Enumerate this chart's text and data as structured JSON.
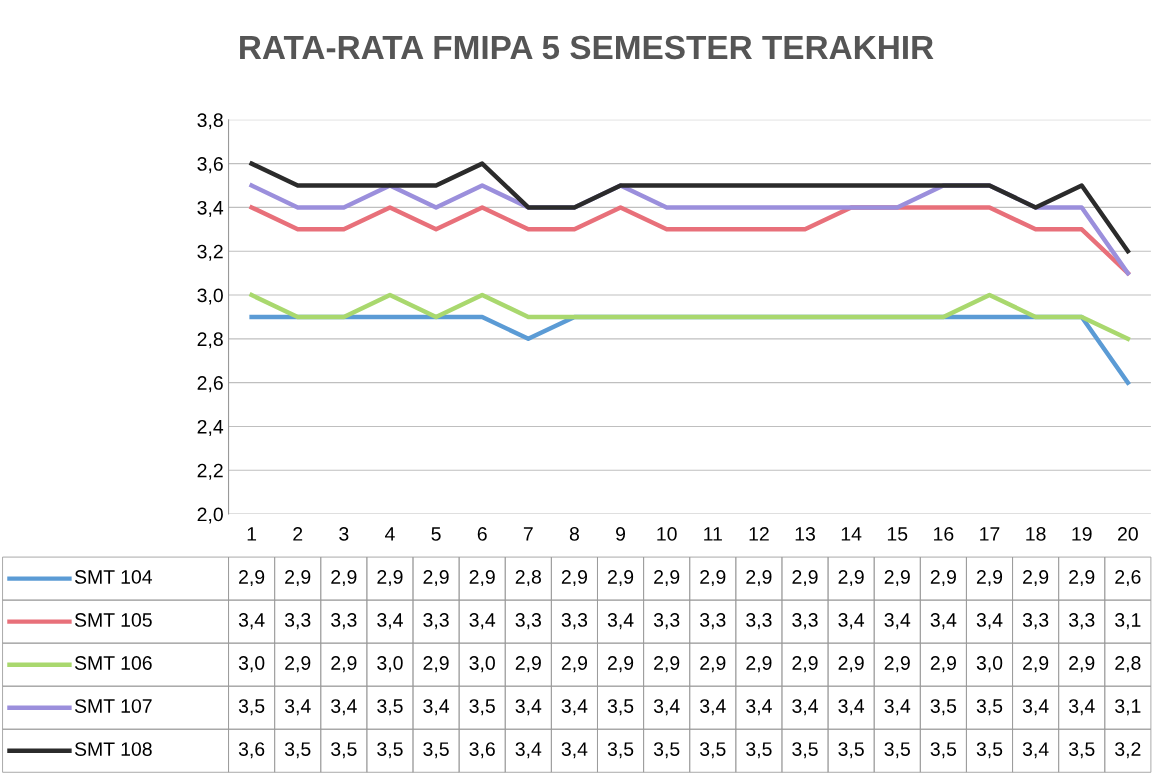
{
  "chart_data": {
    "type": "line",
    "title": "RATA-RATA FMIPA 5 SEMESTER TERAKHIR",
    "categories": [
      "1",
      "2",
      "3",
      "4",
      "5",
      "6",
      "7",
      "8",
      "9",
      "10",
      "11",
      "12",
      "13",
      "14",
      "15",
      "16",
      "17",
      "18",
      "19",
      "20"
    ],
    "series": [
      {
        "name": "SMT 104",
        "color": "#5b9bd5",
        "values": [
          2.9,
          2.9,
          2.9,
          2.9,
          2.9,
          2.9,
          2.8,
          2.9,
          2.9,
          2.9,
          2.9,
          2.9,
          2.9,
          2.9,
          2.9,
          2.9,
          2.9,
          2.9,
          2.9,
          2.6
        ],
        "value_labels": [
          "2,9",
          "2,9",
          "2,9",
          "2,9",
          "2,9",
          "2,9",
          "2,8",
          "2,9",
          "2,9",
          "2,9",
          "2,9",
          "2,9",
          "2,9",
          "2,9",
          "2,9",
          "2,9",
          "2,9",
          "2,9",
          "2,9",
          "2,6"
        ]
      },
      {
        "name": "SMT 105",
        "color": "#e8707a",
        "values": [
          3.4,
          3.3,
          3.3,
          3.4,
          3.3,
          3.4,
          3.3,
          3.3,
          3.4,
          3.3,
          3.3,
          3.3,
          3.3,
          3.4,
          3.4,
          3.4,
          3.4,
          3.3,
          3.3,
          3.1
        ],
        "value_labels": [
          "3,4",
          "3,3",
          "3,3",
          "3,4",
          "3,3",
          "3,4",
          "3,3",
          "3,3",
          "3,4",
          "3,3",
          "3,3",
          "3,3",
          "3,3",
          "3,4",
          "3,4",
          "3,4",
          "3,4",
          "3,3",
          "3,3",
          "3,1"
        ]
      },
      {
        "name": "SMT 106",
        "color": "#a9d86e",
        "values": [
          3.0,
          2.9,
          2.9,
          3.0,
          2.9,
          3.0,
          2.9,
          2.9,
          2.9,
          2.9,
          2.9,
          2.9,
          2.9,
          2.9,
          2.9,
          2.9,
          3.0,
          2.9,
          2.9,
          2.8
        ],
        "value_labels": [
          "3,0",
          "2,9",
          "2,9",
          "3,0",
          "2,9",
          "3,0",
          "2,9",
          "2,9",
          "2,9",
          "2,9",
          "2,9",
          "2,9",
          "2,9",
          "2,9",
          "2,9",
          "2,9",
          "3,0",
          "2,9",
          "2,9",
          "2,8"
        ]
      },
      {
        "name": "SMT 107",
        "color": "#9b8fdc",
        "values": [
          3.5,
          3.4,
          3.4,
          3.5,
          3.4,
          3.5,
          3.4,
          3.4,
          3.5,
          3.4,
          3.4,
          3.4,
          3.4,
          3.4,
          3.4,
          3.5,
          3.5,
          3.4,
          3.4,
          3.1
        ],
        "value_labels": [
          "3,5",
          "3,4",
          "3,4",
          "3,5",
          "3,4",
          "3,5",
          "3,4",
          "3,4",
          "3,5",
          "3,4",
          "3,4",
          "3,4",
          "3,4",
          "3,4",
          "3,4",
          "3,5",
          "3,5",
          "3,4",
          "3,4",
          "3,1"
        ]
      },
      {
        "name": "SMT 108",
        "color": "#2b2b2b",
        "values": [
          3.6,
          3.5,
          3.5,
          3.5,
          3.5,
          3.6,
          3.4,
          3.4,
          3.5,
          3.5,
          3.5,
          3.5,
          3.5,
          3.5,
          3.5,
          3.5,
          3.5,
          3.4,
          3.5,
          3.2
        ],
        "value_labels": [
          "3,6",
          "3,5",
          "3,5",
          "3,5",
          "3,5",
          "3,6",
          "3,4",
          "3,4",
          "3,5",
          "3,5",
          "3,5",
          "3,5",
          "3,5",
          "3,5",
          "3,5",
          "3,5",
          "3,5",
          "3,4",
          "3,5",
          "3,2"
        ]
      }
    ],
    "ylim": [
      2.0,
      3.8
    ],
    "yticks": [
      {
        "value": 2.0,
        "label": "2,0"
      },
      {
        "value": 2.2,
        "label": "2,2"
      },
      {
        "value": 2.4,
        "label": "2,4"
      },
      {
        "value": 2.6,
        "label": "2,6"
      },
      {
        "value": 2.8,
        "label": "2,8"
      },
      {
        "value": 3.0,
        "label": "3,0"
      },
      {
        "value": 3.2,
        "label": "3,2"
      },
      {
        "value": 3.4,
        "label": "3,4"
      },
      {
        "value": 3.6,
        "label": "3,6"
      },
      {
        "value": 3.8,
        "label": "3,8"
      }
    ],
    "grid": "y",
    "legend": "bottom",
    "marker": "none",
    "line_style": "solid"
  }
}
